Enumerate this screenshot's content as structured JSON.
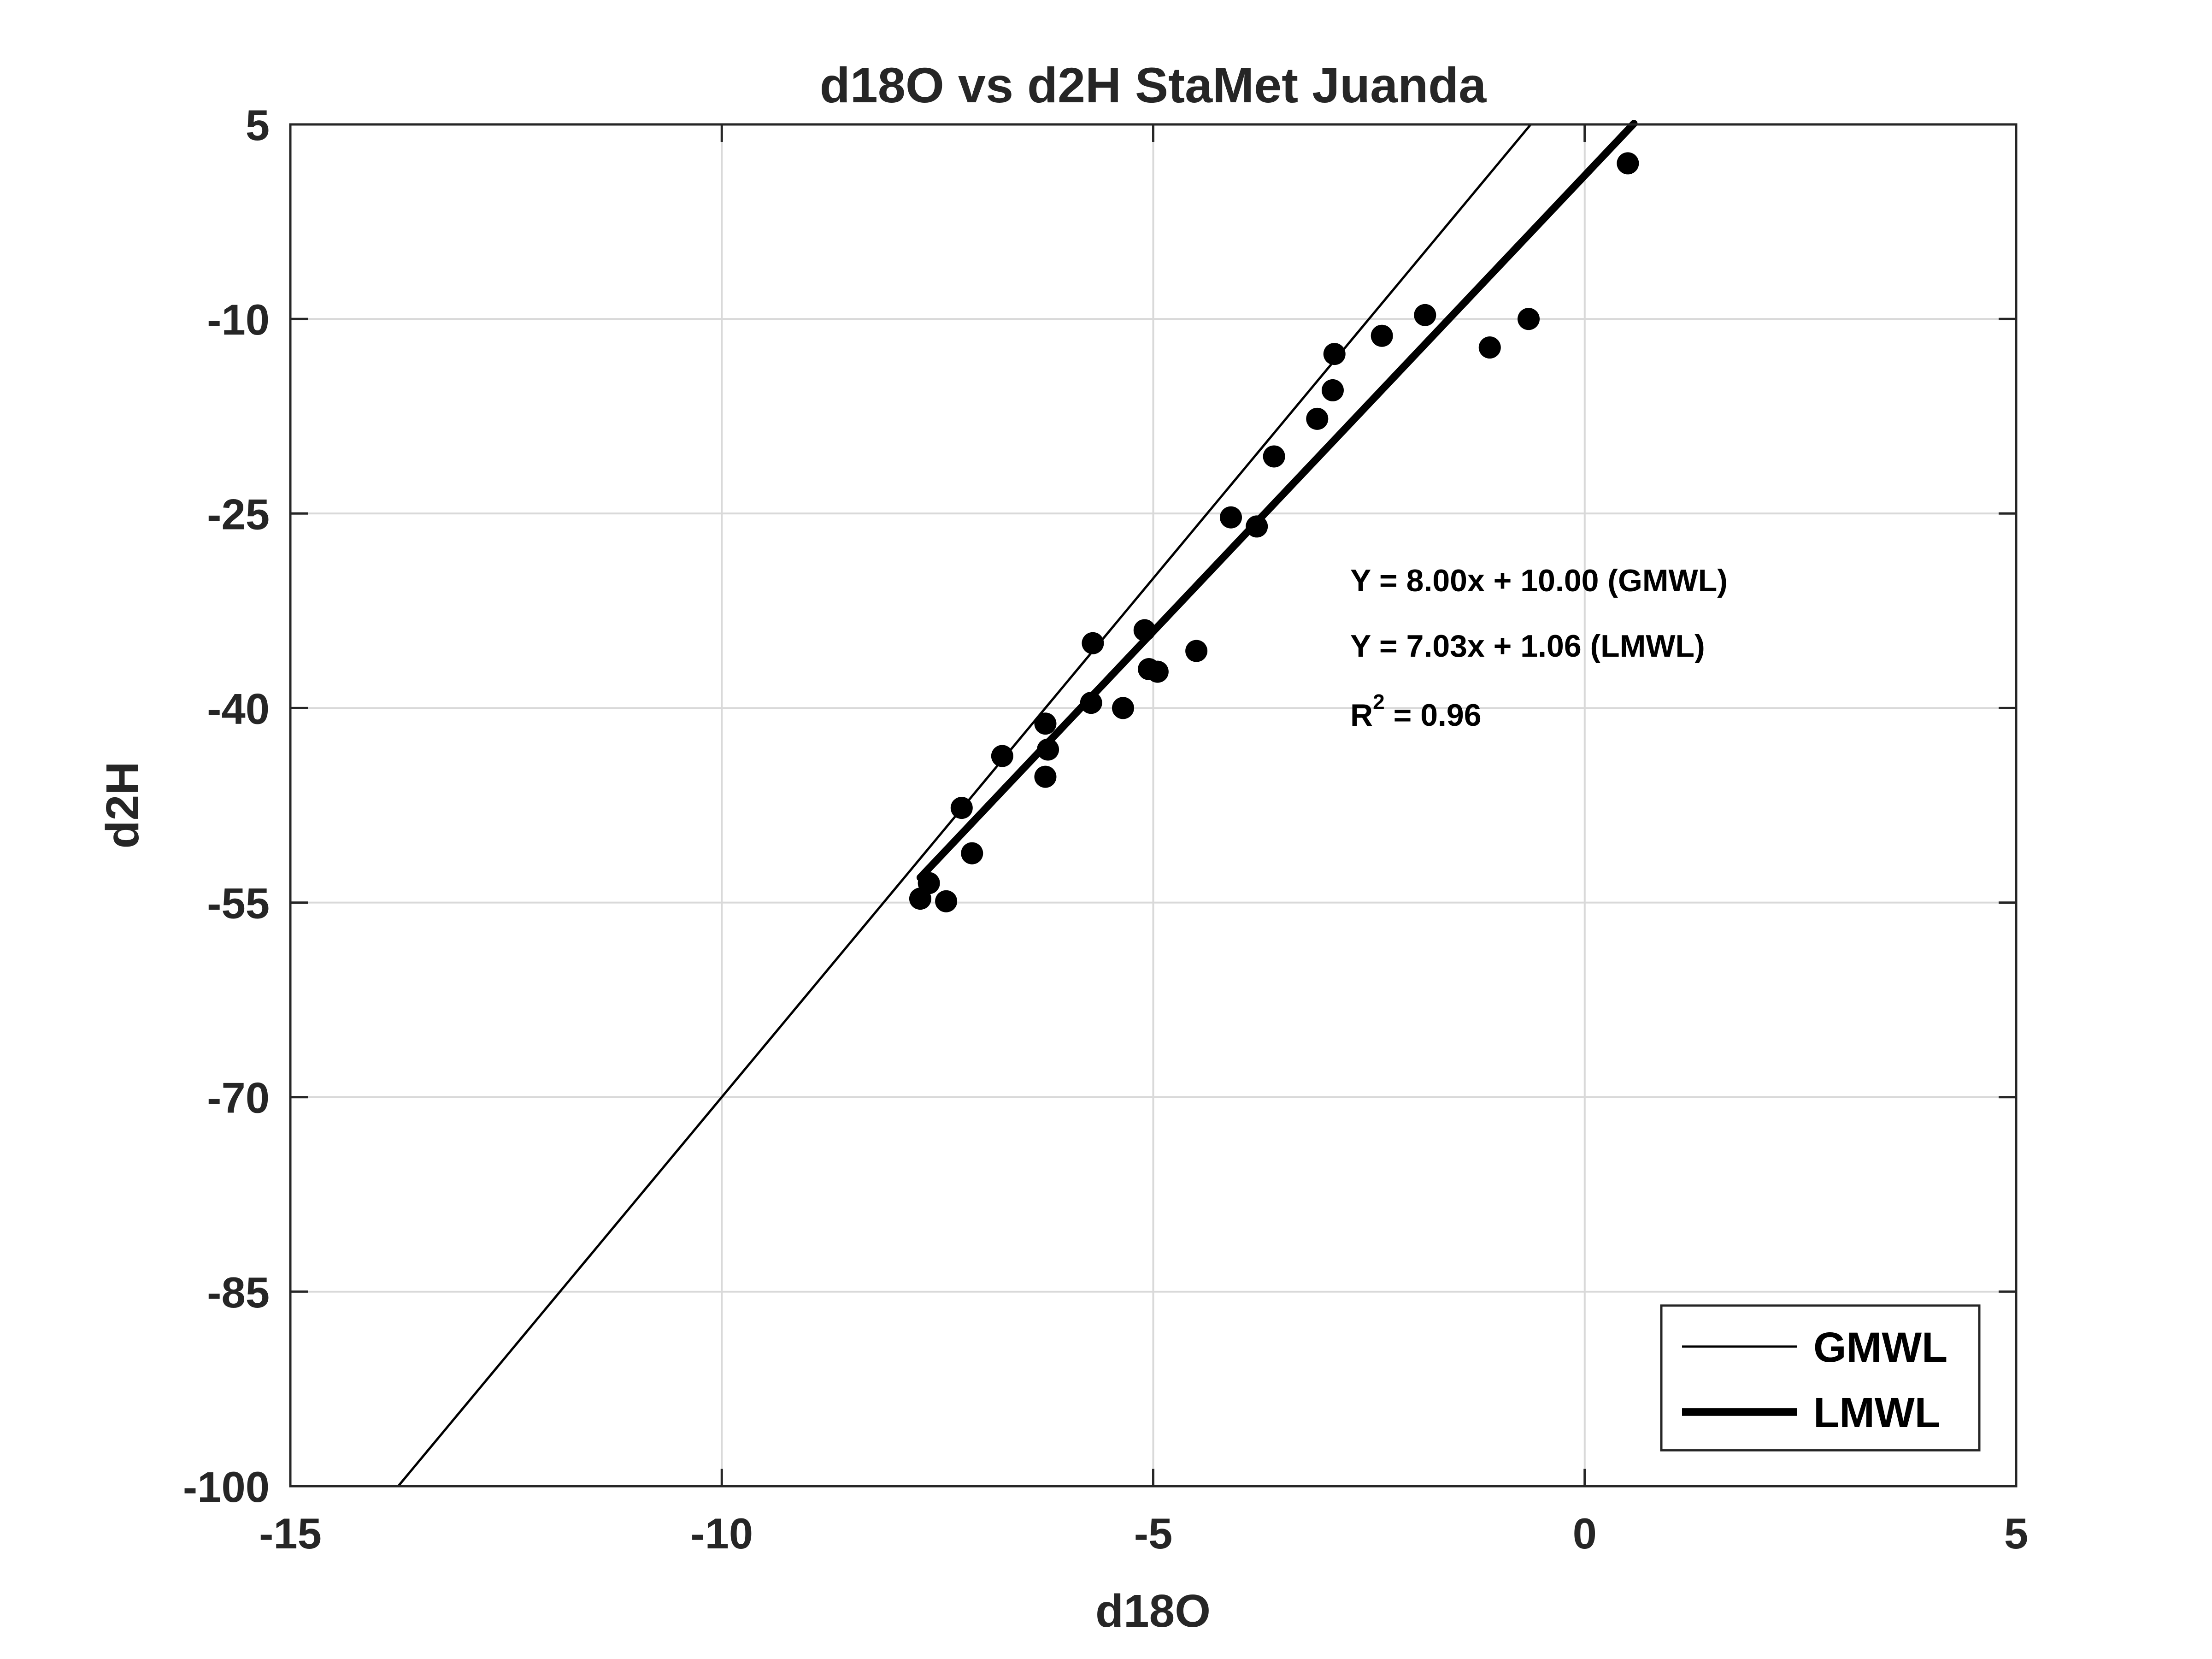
{
  "chart_data": {
    "type": "scatter",
    "title": "d18O vs d2H StaMet Juanda",
    "xlabel": "d18O",
    "ylabel": "d2H",
    "xlim": [
      -15,
      5
    ],
    "ylim": [
      -100,
      5
    ],
    "xticks": [
      -15,
      -10,
      -5,
      0,
      5
    ],
    "yticks": [
      5,
      -10,
      -25,
      -40,
      -55,
      -70,
      -85,
      -100
    ],
    "grid": true,
    "legend_position": "bottom-right",
    "colors": {
      "axes": "#262626",
      "grid": "#d9d9d9",
      "series": "#000000"
    },
    "series": [
      {
        "name": "",
        "kind": "points",
        "x": [
          0.5,
          -0.65,
          -1.1,
          -1.85,
          -2.35,
          -2.9,
          -2.92,
          -3.1,
          -3.6,
          -3.8,
          -4.1,
          -4.5,
          -4.95,
          -5.05,
          -5.1,
          -5.35,
          -5.7,
          -5.72,
          -6.22,
          -6.25,
          -6.25,
          -6.75,
          -7.1,
          -7.22,
          -7.4,
          -7.6,
          -7.7
        ],
        "y": [
          2.0,
          -10.0,
          -12.2,
          -9.7,
          -11.3,
          -12.7,
          -15.5,
          -17.7,
          -20.6,
          -26.0,
          -25.3,
          -35.6,
          -37.2,
          -37.0,
          -34.0,
          -40.0,
          -35.0,
          -39.6,
          -43.2,
          -45.3,
          -41.2,
          -43.7,
          -51.2,
          -47.7,
          -54.9,
          -53.5,
          -54.7
        ]
      },
      {
        "name": "GMWL",
        "kind": "line",
        "slope": 8.0,
        "intercept": 10.0,
        "x": [
          -13.75,
          -0.625
        ]
      },
      {
        "name": "LMWL",
        "kind": "line",
        "slope": 7.03,
        "intercept": 1.06,
        "x": [
          -7.7,
          0.57
        ]
      }
    ],
    "annotations": {
      "gmwl_equation": "Y = 8.00x + 10.00 (GMWL)",
      "lmwl_equation": "Y = 7.03x + 1.06 (LMWL)",
      "r2_prefix": "R",
      "r2_superscript": "2",
      "r2_value": " = 0.96"
    },
    "legend": [
      "GMWL",
      "LMWL"
    ]
  }
}
